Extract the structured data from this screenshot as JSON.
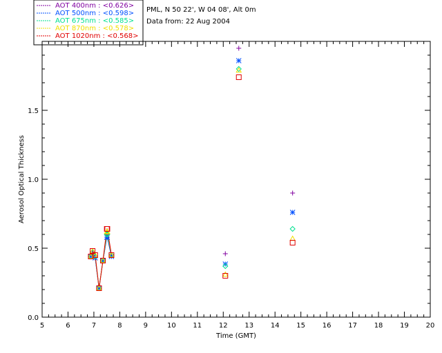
{
  "chart_data": {
    "type": "scatter",
    "info": {
      "station": "PML, N 50 22', W 04 08', Alt 0m",
      "date": "Data from: 22 Aug 2004"
    },
    "xlabel": "Time (GMT)",
    "ylabel": "Aerosol Optical Thickness",
    "xlim": [
      5,
      20
    ],
    "ylim": [
      0.0,
      2.0
    ],
    "x_ticks": [
      "5",
      "6",
      "7",
      "8",
      "9",
      "10",
      "11",
      "12",
      "13",
      "14",
      "15",
      "16",
      "17",
      "18",
      "19",
      "20"
    ],
    "y_ticks": [
      "0.0",
      "0.5",
      "1.0",
      "1.5"
    ],
    "grid": false,
    "legend_position": "top-left",
    "x": [
      6.88,
      6.95,
      7.05,
      7.2,
      7.35,
      7.5,
      7.52,
      7.68,
      12.08,
      12.6,
      14.68
    ],
    "connected_points": 8,
    "series": [
      {
        "name": "AOT  400nm : <0.626>",
        "color": "#8000a0",
        "marker": "plus",
        "values": [
          0.44,
          0.46,
          0.43,
          0.21,
          0.41,
          0.58,
          0.58,
          0.44,
          0.46,
          1.95,
          0.9
        ]
      },
      {
        "name": "AOT  500nm : <0.598>",
        "color": "#0050ff",
        "marker": "star",
        "values": [
          0.44,
          0.46,
          0.43,
          0.21,
          0.41,
          0.58,
          0.58,
          0.44,
          0.385,
          1.86,
          0.76
        ]
      },
      {
        "name": "AOT  675nm : <0.585>",
        "color": "#00e090",
        "marker": "diamond",
        "values": [
          0.44,
          0.47,
          0.44,
          0.21,
          0.41,
          0.6,
          0.6,
          0.45,
          0.37,
          1.8,
          0.64
        ]
      },
      {
        "name": "AOT  870nm : <0.578>",
        "color": "#f0e000",
        "marker": "triangle",
        "values": [
          0.44,
          0.48,
          0.45,
          0.21,
          0.41,
          0.62,
          0.62,
          0.45,
          0.31,
          1.79,
          0.57
        ]
      },
      {
        "name": "AOT 1020nm : <0.568>",
        "color": "#e00000",
        "marker": "square",
        "values": [
          0.44,
          0.48,
          0.45,
          0.21,
          0.41,
          0.64,
          0.64,
          0.45,
          0.3,
          1.74,
          0.54
        ]
      }
    ]
  }
}
